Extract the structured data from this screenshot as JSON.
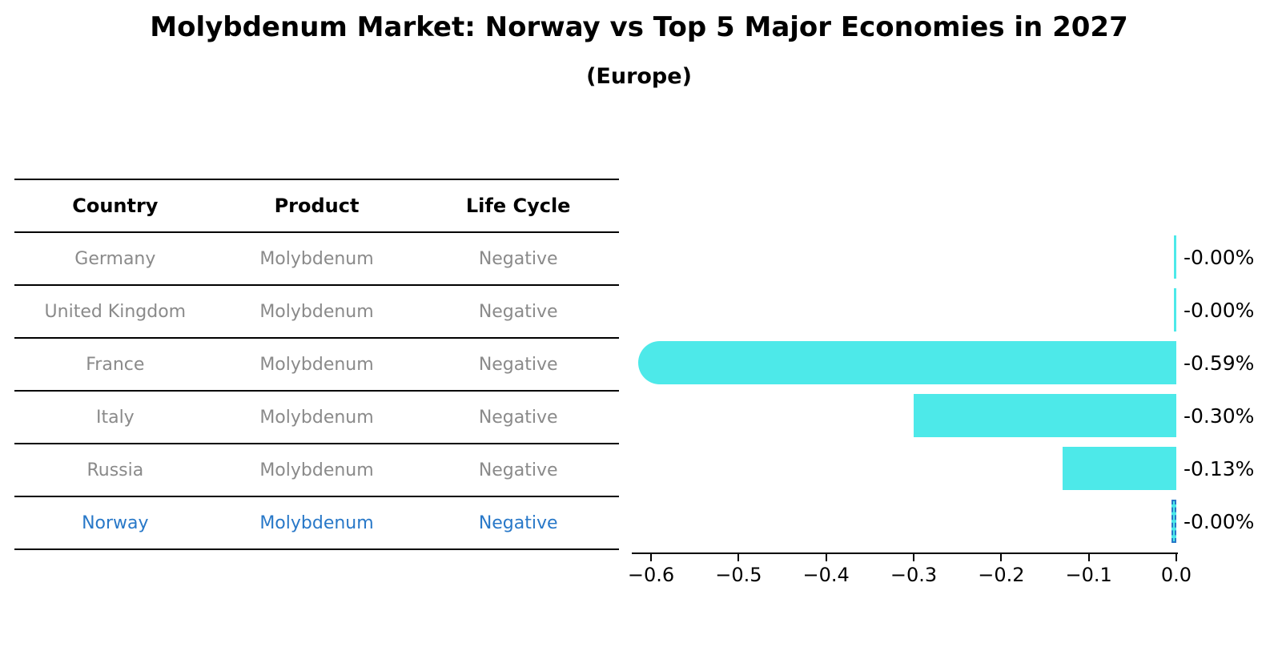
{
  "title": "Molybdenum Market: Norway vs Top 5 Major Economies in 2027",
  "subtitle": "(Europe)",
  "table": {
    "columns": [
      "Country",
      "Product",
      "Life Cycle"
    ],
    "rows": [
      {
        "country": "Germany",
        "product": "Molybdenum",
        "life_cycle": "Negative",
        "highlighted": false
      },
      {
        "country": "United Kingdom",
        "product": "Molybdenum",
        "life_cycle": "Negative",
        "highlighted": false
      },
      {
        "country": "France",
        "product": "Molybdenum",
        "life_cycle": "Negative",
        "highlighted": false
      },
      {
        "country": "Italy",
        "product": "Molybdenum",
        "life_cycle": "Negative",
        "highlighted": false
      },
      {
        "country": "Russia",
        "product": "Molybdenum",
        "life_cycle": "Negative",
        "highlighted": false
      },
      {
        "country": "Norway",
        "product": "Molybdenum",
        "life_cycle": "Negative",
        "highlighted": true
      }
    ]
  },
  "chart_data": {
    "type": "bar",
    "orientation": "horizontal",
    "title": "Molybdenum Market: Norway vs Top 5 Major Economies in 2027",
    "subtitle": "(Europe)",
    "categories": [
      "Germany",
      "United Kingdom",
      "France",
      "Italy",
      "Russia",
      "Norway"
    ],
    "values": [
      -0.0,
      -0.0,
      -0.59,
      -0.3,
      -0.13,
      -0.0
    ],
    "value_labels": [
      "-0.00%",
      "-0.00%",
      "-0.59%",
      "-0.30%",
      "-0.13%",
      "-0.00%"
    ],
    "x_tick_labels": [
      "−0.6",
      "−0.5",
      "−0.4",
      "−0.3",
      "−0.2",
      "−0.1",
      "0.0"
    ],
    "x_tick_values": [
      -0.6,
      -0.5,
      -0.4,
      -0.3,
      -0.2,
      -0.1,
      0.0
    ],
    "xlim": [
      -0.622,
      0
    ],
    "xlabel": "",
    "ylabel": "",
    "grid": false,
    "legend": false,
    "bar_color": "#4de9e9",
    "highlight_color": "#2878c8",
    "highlight_index": 5,
    "text_gray": "#8a8a8a"
  }
}
